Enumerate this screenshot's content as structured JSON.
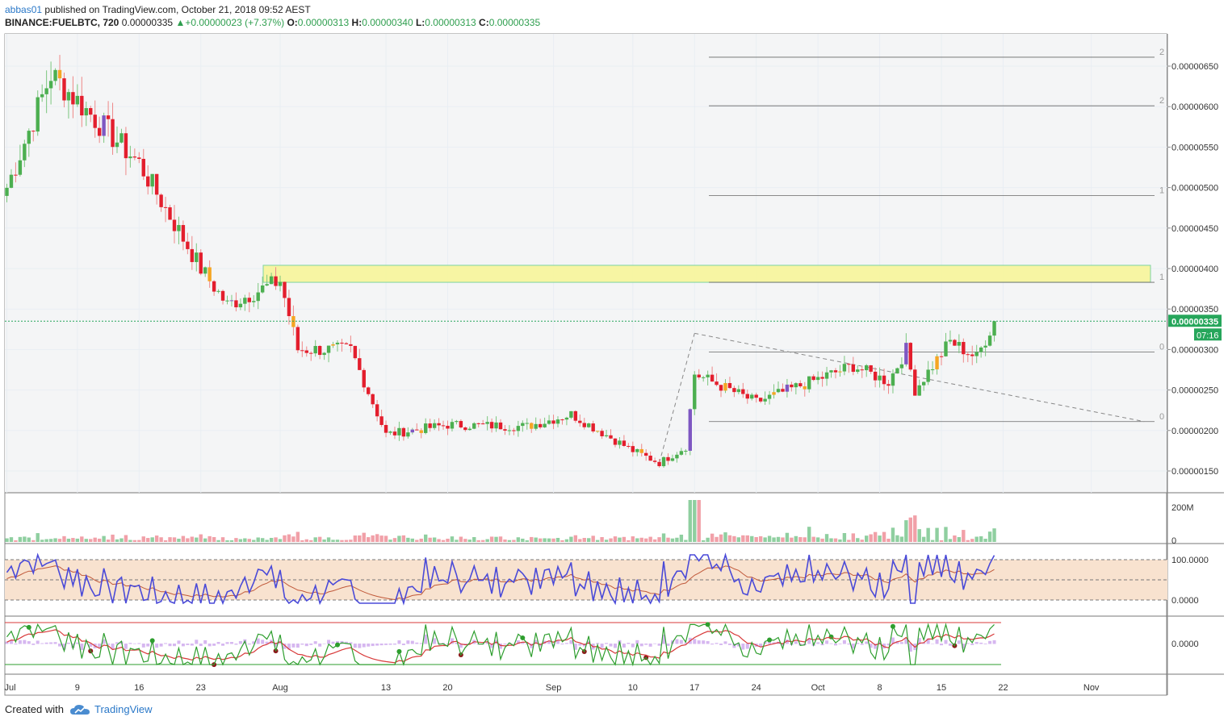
{
  "header": {
    "author": "abbas01",
    "published": "published on TradingView.com, October 21, 2018 09:52 AEST",
    "symbol": "BINANCE:FUELBTC, 720",
    "last": "0.00000335",
    "change": "+0.00000023 (+7.37%)",
    "o_label": "O:",
    "o_value": "0.00000313",
    "h_label": "H:",
    "h_value": "0.00000340",
    "l_label": "L:",
    "l_value": "0.00000313",
    "c_label": "C:",
    "c_value": "0.00000335"
  },
  "footer": {
    "created_with": "Created with",
    "brand": "TradingView"
  },
  "colors": {
    "up": "#4caf50",
    "down": "#e31e2d",
    "orange": "#f5a623",
    "purple": "#7e57c2",
    "zone": "#f7f59a",
    "zone_border": "#7ed3a0",
    "grid": "#e9eef3",
    "line": "#555555",
    "price_tag": "#26a65b",
    "rsi": "#4a4ad8",
    "rsi_ma": "#c0593a",
    "rsi_band": "#f8e2cf",
    "macd_fast": "#2e9e2e",
    "macd_slow": "#d83a3a",
    "hist": "#d6b7f0"
  },
  "chart_data": {
    "type": "candlestick",
    "x_ticks": [
      "Jul",
      "9",
      "16",
      "23",
      "Aug",
      "13",
      "20",
      "Sep",
      "10",
      "17",
      "24",
      "Oct",
      "8",
      "15",
      "22",
      "Nov"
    ],
    "y_ticks": [
      "0.00000650",
      "0.00000600",
      "0.00000550",
      "0.00000500",
      "0.00000450",
      "0.00000400",
      "0.00000350",
      "0.00000300",
      "0.00000250",
      "0.00000200",
      "0.00000150"
    ],
    "price_range": [
      1.28e-06,
      6.68e-06
    ],
    "last_price_label": "0.00000335",
    "countdown": "07:16",
    "fib_levels": [
      {
        "price": 6.61e-06,
        "label": "2"
      },
      {
        "price": 6.01e-06,
        "label": "2"
      },
      {
        "price": 4.9e-06,
        "label": "1"
      },
      {
        "price": 3.83e-06,
        "label": "1"
      },
      {
        "price": 2.97e-06,
        "label": "0"
      },
      {
        "price": 2.11e-06,
        "label": "0"
      }
    ],
    "resistance_zone": [
      3.83e-06,
      4.04e-06
    ],
    "anchors": [
      {
        "date": "2018-07-01",
        "price": 5e-06
      },
      {
        "date": "2018-07-06",
        "price": 6.4e-06
      },
      {
        "date": "2018-07-16",
        "price": 5.3e-06
      },
      {
        "date": "2018-07-23",
        "price": 4e-06
      },
      {
        "date": "2018-07-26",
        "price": 3.55e-06
      },
      {
        "date": "2018-08-01",
        "price": 3.85e-06
      },
      {
        "date": "2018-08-03",
        "price": 3e-06
      },
      {
        "date": "2018-08-09",
        "price": 3e-06
      },
      {
        "date": "2018-08-13",
        "price": 1.95e-06
      },
      {
        "date": "2018-08-20",
        "price": 2.07e-06
      },
      {
        "date": "2018-08-29",
        "price": 2.05e-06
      },
      {
        "date": "2018-09-03",
        "price": 2.2e-06
      },
      {
        "date": "2018-09-10",
        "price": 1.75e-06
      },
      {
        "date": "2018-09-13",
        "price": 1.6e-06
      },
      {
        "date": "2018-09-16",
        "price": 1.8e-06
      },
      {
        "date": "2018-09-17",
        "price": 2.7e-06
      },
      {
        "date": "2018-09-24",
        "price": 2.35e-06
      },
      {
        "date": "2018-10-05",
        "price": 2.8e-06
      },
      {
        "date": "2018-10-09",
        "price": 2.6e-06
      },
      {
        "date": "2018-10-11",
        "price": 3e-06
      },
      {
        "date": "2018-10-12",
        "price": 2.5e-06
      },
      {
        "date": "2018-10-16",
        "price": 3.1e-06
      },
      {
        "date": "2018-10-19",
        "price": 2.9e-06
      },
      {
        "date": "2018-10-21",
        "price": 3.35e-06
      }
    ],
    "volume_axis": [
      "200M",
      "0"
    ],
    "rsi_axis": [
      "100.0000",
      "0.0000"
    ],
    "macd_axis": [
      "0.0000"
    ]
  }
}
